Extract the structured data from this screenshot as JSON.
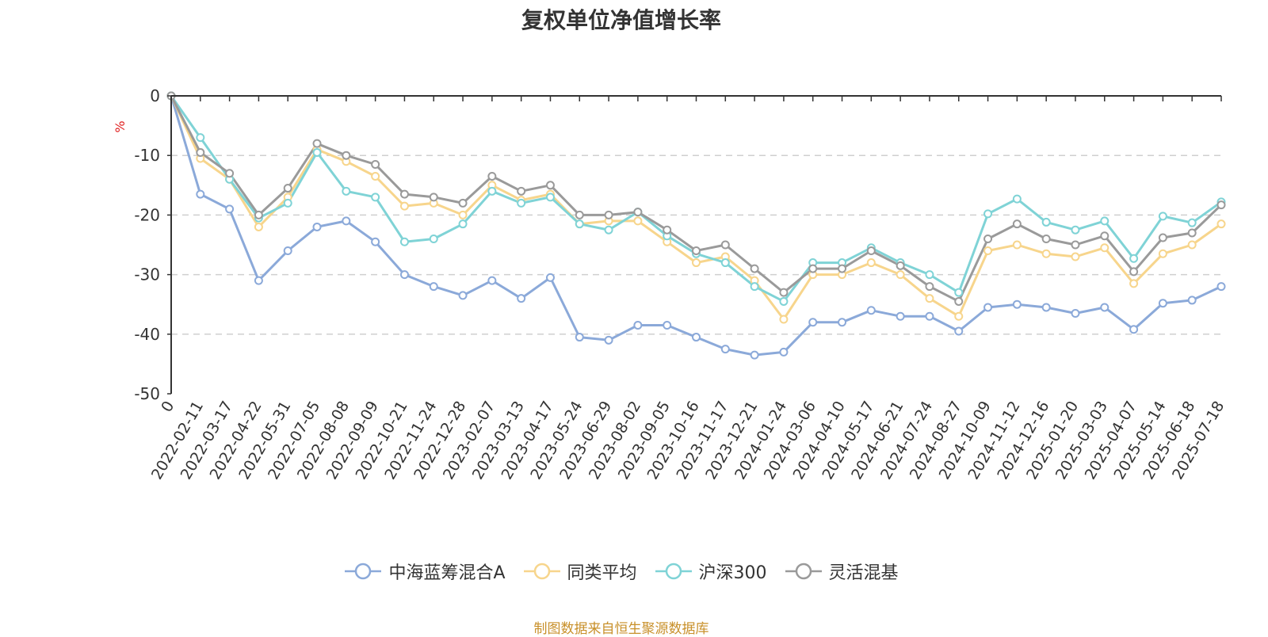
{
  "title": "复权单位净值增长率",
  "source_text": "制图数据来自恒生聚源数据库",
  "chart_data": {
    "type": "line",
    "ylabel": "%",
    "xlabel": "",
    "ylim": [
      -50,
      0
    ],
    "yticks": [
      0,
      -10,
      -20,
      -30,
      -40,
      -50
    ],
    "grid": true,
    "legend_position": "bottom",
    "x": [
      "0",
      "2022-02-11",
      "2022-03-17",
      "2022-04-22",
      "2022-05-31",
      "2022-07-05",
      "2022-08-08",
      "2022-09-09",
      "2022-10-21",
      "2022-11-24",
      "2022-12-28",
      "2023-02-07",
      "2023-03-13",
      "2023-04-17",
      "2023-05-24",
      "2023-06-29",
      "2023-08-02",
      "2023-09-05",
      "2023-10-16",
      "2023-11-17",
      "2023-12-21",
      "2024-01-24",
      "2024-03-06",
      "2024-04-10",
      "2024-05-17",
      "2024-06-21",
      "2024-07-24",
      "2024-08-27",
      "2024-10-09",
      "2024-11-12",
      "2024-12-16",
      "2025-01-20",
      "2025-03-03",
      "2025-04-07",
      "2025-05-14",
      "2025-06-18",
      "2025-07-18"
    ],
    "series": [
      {
        "name": "中海蓝筹混合A",
        "color": "#8ba9d9",
        "values": [
          0,
          -16.5,
          -19,
          -31,
          -26,
          -22,
          -21,
          -24.5,
          -30,
          -32,
          -33.5,
          -31,
          -34,
          -30.5,
          -40.5,
          -41,
          -38.5,
          -38.5,
          -40.5,
          -42.5,
          -43.5,
          -43,
          -38,
          -38,
          -36,
          -37,
          -37,
          -39.5,
          -35.5,
          -35,
          -35.5,
          -36.5,
          -35.5,
          -39.2,
          -34.8,
          -34.3,
          -32
        ]
      },
      {
        "name": "同类平均",
        "color": "#f7d58c",
        "values": [
          0,
          -10.5,
          -14,
          -22,
          -17,
          -9,
          -11,
          -13.5,
          -18.5,
          -18,
          -20,
          -15,
          -17.5,
          -16.5,
          -21.5,
          -21,
          -21,
          -24.5,
          -28,
          -27,
          -31,
          -37.5,
          -30,
          -30,
          -28,
          -30,
          -34,
          -37,
          -26,
          -25,
          -26.5,
          -27,
          -25.5,
          -31.5,
          -26.5,
          -25,
          -21.5
        ]
      },
      {
        "name": "沪深300",
        "color": "#7fd3d6",
        "values": [
          0,
          -7,
          -14,
          -20.5,
          -18,
          -9.5,
          -16,
          -17,
          -24.5,
          -24,
          -21.5,
          -16,
          -18,
          -17,
          -21.5,
          -22.5,
          -19.5,
          -23.5,
          -26.5,
          -28,
          -32,
          -34.5,
          -28,
          -28,
          -25.5,
          -28,
          -30,
          -33,
          -19.8,
          -17.3,
          -21.2,
          -22.5,
          -21,
          -27.3,
          -20.2,
          -21.3,
          -17.8
        ]
      },
      {
        "name": "灵活混基",
        "color": "#9a9a9a",
        "values": [
          0,
          -9.5,
          -13,
          -20,
          -15.5,
          -8,
          -10,
          -11.5,
          -16.5,
          -17,
          -18,
          -13.5,
          -16,
          -15,
          -20,
          -20,
          -19.5,
          -22.5,
          -26,
          -25,
          -29,
          -33,
          -29,
          -29,
          -26,
          -28.5,
          -32,
          -34.5,
          -24,
          -21.5,
          -24,
          -25,
          -23.5,
          -29.5,
          -23.8,
          -23,
          -18.3
        ]
      }
    ]
  }
}
